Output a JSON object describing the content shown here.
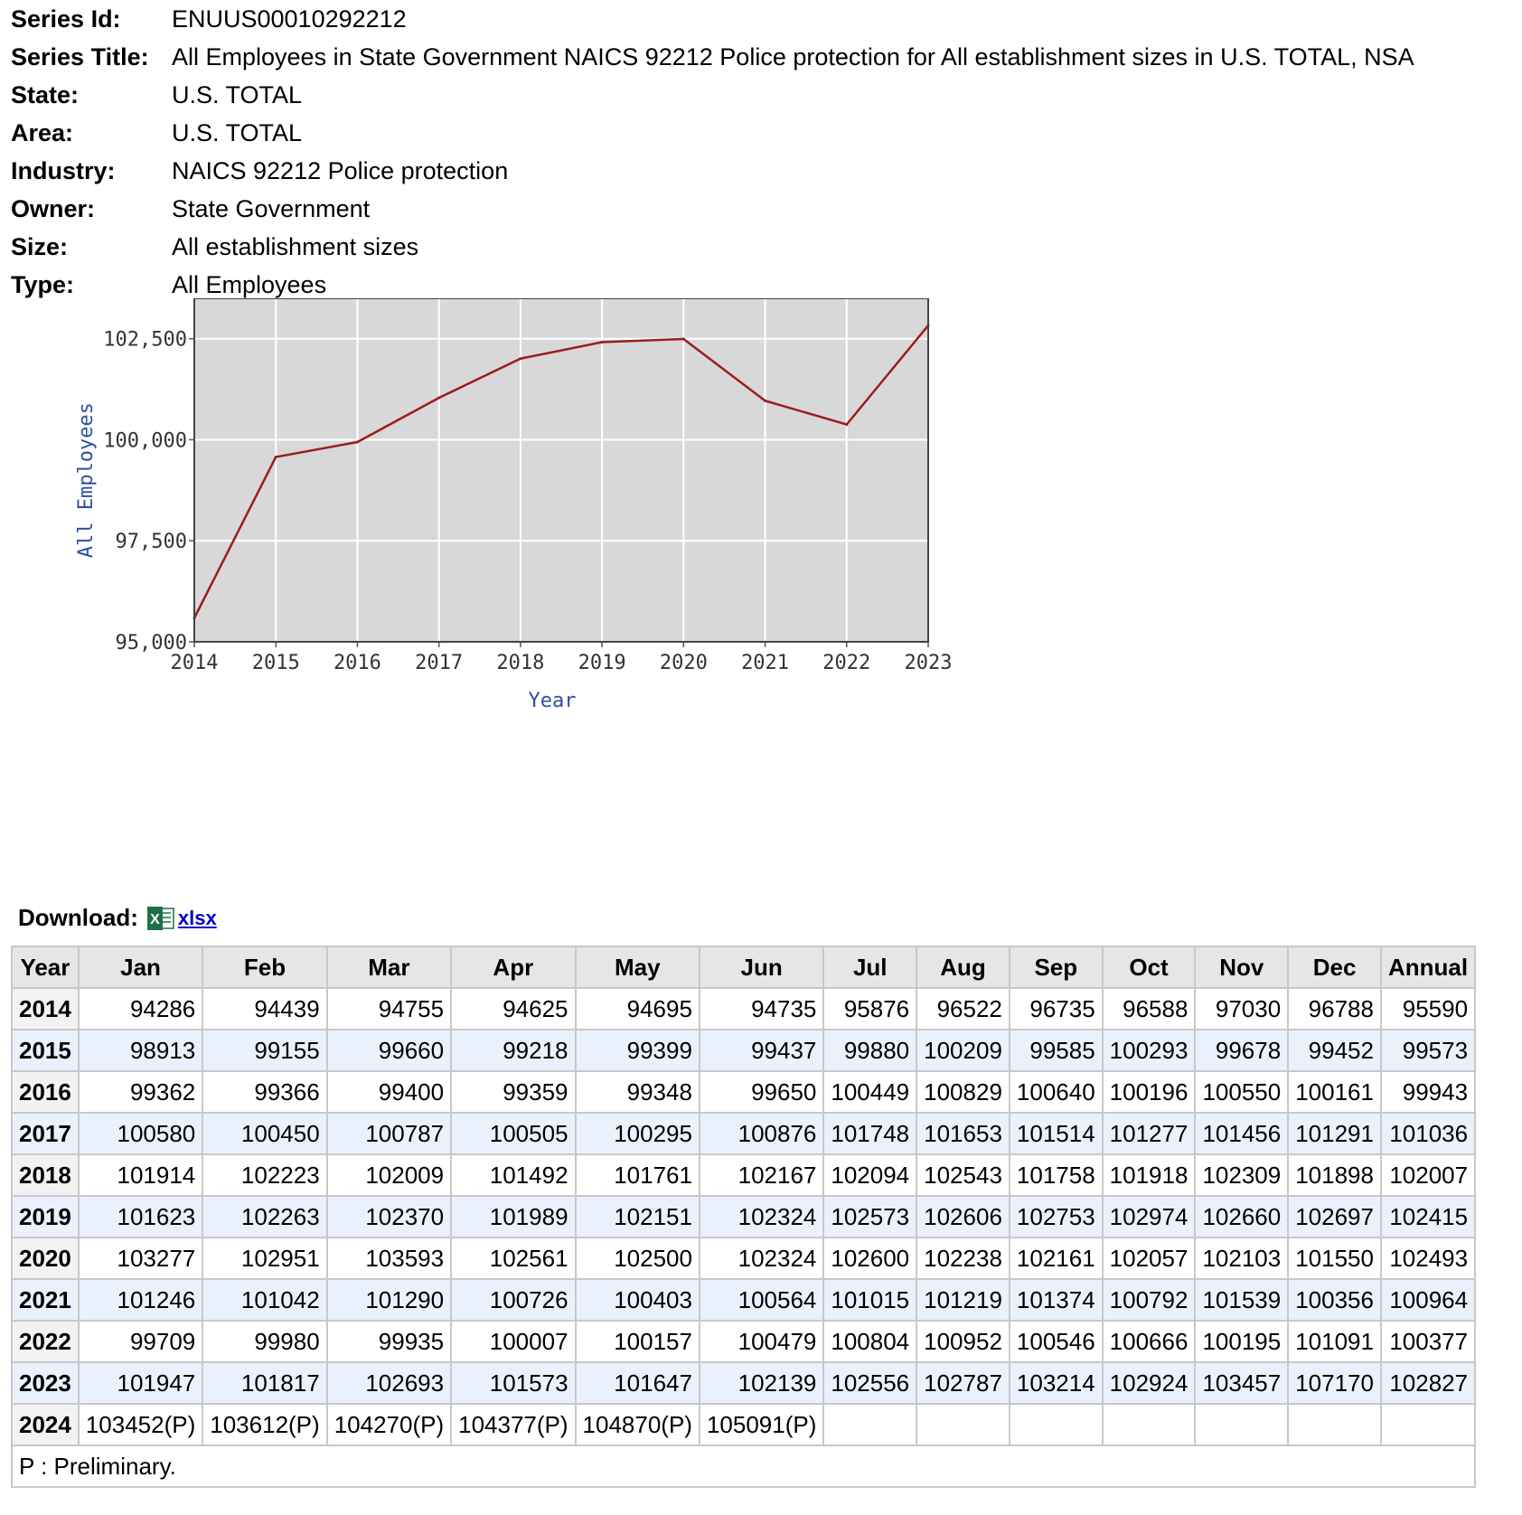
{
  "series_info": [
    {
      "label": "Series Id:",
      "value": "ENUUS00010292212"
    },
    {
      "label": "Series Title:",
      "value": "All Employees in State Government NAICS 92212 Police protection for All establishment sizes in U.S. TOTAL, NSA"
    },
    {
      "label": "State:",
      "value": "U.S. TOTAL"
    },
    {
      "label": "Area:",
      "value": "U.S. TOTAL"
    },
    {
      "label": "Industry:",
      "value": "NAICS 92212 Police protection"
    },
    {
      "label": "Owner:",
      "value": "State Government"
    },
    {
      "label": "Size:",
      "value": "All establishment sizes"
    },
    {
      "label": "Type:",
      "value": "All Employees"
    }
  ],
  "chart_data": {
    "type": "line",
    "title": "",
    "xlabel": "Year",
    "ylabel": "All Employees",
    "x": [
      2014,
      2015,
      2016,
      2017,
      2018,
      2019,
      2020,
      2021,
      2022,
      2023
    ],
    "values": [
      95590,
      99573,
      99943,
      101036,
      102007,
      102415,
      102493,
      100964,
      100377,
      102827
    ],
    "xlim": [
      2014,
      2023
    ],
    "ylim": [
      95000,
      103500
    ],
    "yticks": [
      95000,
      97500,
      100000,
      102500
    ],
    "ytick_labels": [
      "95,000",
      "97,500",
      "100,000",
      "102,500"
    ],
    "xtick_labels": [
      "2014",
      "2015",
      "2016",
      "2017",
      "2018",
      "2019",
      "2020",
      "2021",
      "2022",
      "2023"
    ],
    "line_color": "#9c1c1c",
    "plot_bg": "#d8d8d8",
    "grid": true
  },
  "download": {
    "label": "Download:",
    "icon": "excel-icon",
    "link_text": "xlsx"
  },
  "table": {
    "columns": [
      "Year",
      "Jan",
      "Feb",
      "Mar",
      "Apr",
      "May",
      "Jun",
      "Jul",
      "Aug",
      "Sep",
      "Oct",
      "Nov",
      "Dec",
      "Annual"
    ],
    "rows": [
      {
        "year": "2014",
        "values": [
          "94286",
          "94439",
          "94755",
          "94625",
          "94695",
          "94735",
          "95876",
          "96522",
          "96735",
          "96588",
          "97030",
          "96788",
          "95590"
        ]
      },
      {
        "year": "2015",
        "values": [
          "98913",
          "99155",
          "99660",
          "99218",
          "99399",
          "99437",
          "99880",
          "100209",
          "99585",
          "100293",
          "99678",
          "99452",
          "99573"
        ]
      },
      {
        "year": "2016",
        "values": [
          "99362",
          "99366",
          "99400",
          "99359",
          "99348",
          "99650",
          "100449",
          "100829",
          "100640",
          "100196",
          "100550",
          "100161",
          "99943"
        ]
      },
      {
        "year": "2017",
        "values": [
          "100580",
          "100450",
          "100787",
          "100505",
          "100295",
          "100876",
          "101748",
          "101653",
          "101514",
          "101277",
          "101456",
          "101291",
          "101036"
        ]
      },
      {
        "year": "2018",
        "values": [
          "101914",
          "102223",
          "102009",
          "101492",
          "101761",
          "102167",
          "102094",
          "102543",
          "101758",
          "101918",
          "102309",
          "101898",
          "102007"
        ]
      },
      {
        "year": "2019",
        "values": [
          "101623",
          "102263",
          "102370",
          "101989",
          "102151",
          "102324",
          "102573",
          "102606",
          "102753",
          "102974",
          "102660",
          "102697",
          "102415"
        ]
      },
      {
        "year": "2020",
        "values": [
          "103277",
          "102951",
          "103593",
          "102561",
          "102500",
          "102324",
          "102600",
          "102238",
          "102161",
          "102057",
          "102103",
          "101550",
          "102493"
        ]
      },
      {
        "year": "2021",
        "values": [
          "101246",
          "101042",
          "101290",
          "100726",
          "100403",
          "100564",
          "101015",
          "101219",
          "101374",
          "100792",
          "101539",
          "100356",
          "100964"
        ]
      },
      {
        "year": "2022",
        "values": [
          "99709",
          "99980",
          "99935",
          "100007",
          "100157",
          "100479",
          "100804",
          "100952",
          "100546",
          "100666",
          "100195",
          "101091",
          "100377"
        ]
      },
      {
        "year": "2023",
        "values": [
          "101947",
          "101817",
          "102693",
          "101573",
          "101647",
          "102139",
          "102556",
          "102787",
          "103214",
          "102924",
          "103457",
          "107170",
          "102827"
        ]
      },
      {
        "year": "2024",
        "values": [
          "103452(P)",
          "103612(P)",
          "104270(P)",
          "104377(P)",
          "104870(P)",
          "105091(P)",
          "",
          "",
          "",
          "",
          "",
          "",
          ""
        ]
      }
    ],
    "footnote": "P : Preliminary."
  }
}
